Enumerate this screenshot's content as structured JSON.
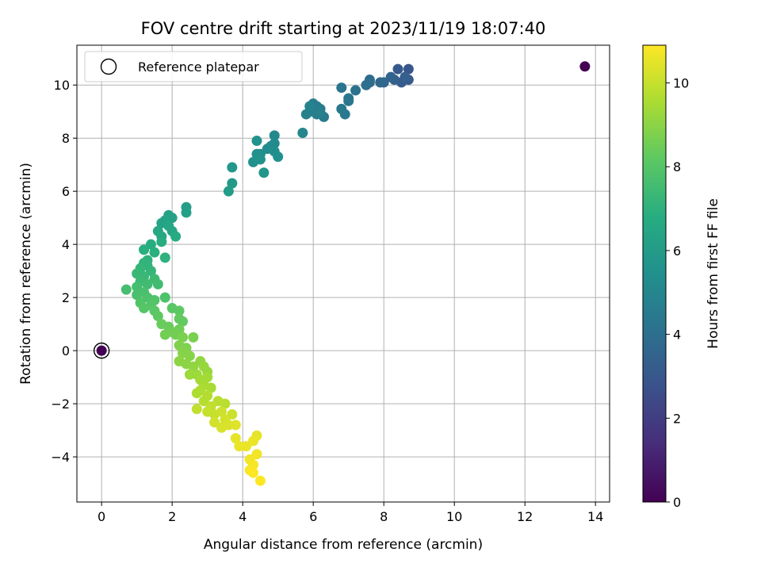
{
  "chart_data": {
    "type": "scatter",
    "title": "FOV centre drift starting at 2023/11/19 18:07:40",
    "xlabel": "Angular distance from reference (arcmin)",
    "ylabel": "Rotation from reference (arcmin)",
    "xlim": [
      -0.7,
      14.4
    ],
    "ylim": [
      -5.7,
      11.5
    ],
    "x_ticks": [
      0,
      2,
      4,
      6,
      8,
      10,
      12,
      14
    ],
    "y_ticks": [
      -4,
      -2,
      0,
      2,
      4,
      6,
      8,
      10
    ],
    "grid": true,
    "legend": {
      "placement": "top-left",
      "entries": [
        "Reference platepar"
      ]
    },
    "reference_point": {
      "x": 0,
      "y": 0,
      "value": 0
    },
    "colorbar": {
      "label": "Hours from first FF file",
      "range": [
        0,
        10.9
      ],
      "ticks": [
        0,
        2,
        4,
        6,
        8,
        10
      ],
      "colormap": "viridis",
      "stops": [
        "#440154",
        "#472c7a",
        "#3b518b",
        "#2c718e",
        "#21908d",
        "#27ad81",
        "#5cc863",
        "#aadc32",
        "#fde725"
      ]
    },
    "points": [
      {
        "x": 13.7,
        "y": 10.7,
        "h": 0.0
      },
      {
        "x": 8.7,
        "y": 10.6,
        "h": 3.0
      },
      {
        "x": 8.4,
        "y": 10.6,
        "h": 3.1
      },
      {
        "x": 8.7,
        "y": 10.2,
        "h": 3.2
      },
      {
        "x": 8.5,
        "y": 10.1,
        "h": 3.2
      },
      {
        "x": 8.6,
        "y": 10.3,
        "h": 3.3
      },
      {
        "x": 8.3,
        "y": 10.2,
        "h": 3.4
      },
      {
        "x": 8.2,
        "y": 10.3,
        "h": 3.5
      },
      {
        "x": 8.0,
        "y": 10.1,
        "h": 3.6
      },
      {
        "x": 7.9,
        "y": 10.1,
        "h": 3.7
      },
      {
        "x": 7.6,
        "y": 10.2,
        "h": 3.8
      },
      {
        "x": 7.6,
        "y": 10.1,
        "h": 3.9
      },
      {
        "x": 7.5,
        "y": 10.0,
        "h": 4.0
      },
      {
        "x": 7.2,
        "y": 9.8,
        "h": 4.1
      },
      {
        "x": 6.8,
        "y": 9.9,
        "h": 4.2
      },
      {
        "x": 7.0,
        "y": 9.5,
        "h": 4.3
      },
      {
        "x": 7.0,
        "y": 9.4,
        "h": 4.3
      },
      {
        "x": 6.8,
        "y": 9.1,
        "h": 4.4
      },
      {
        "x": 6.9,
        "y": 8.9,
        "h": 4.4
      },
      {
        "x": 6.3,
        "y": 8.8,
        "h": 4.5
      },
      {
        "x": 6.2,
        "y": 9.1,
        "h": 4.5
      },
      {
        "x": 6.0,
        "y": 9.3,
        "h": 4.6
      },
      {
        "x": 6.1,
        "y": 9.2,
        "h": 4.6
      },
      {
        "x": 5.9,
        "y": 9.0,
        "h": 4.7
      },
      {
        "x": 6.1,
        "y": 8.9,
        "h": 4.7
      },
      {
        "x": 5.8,
        "y": 8.9,
        "h": 4.8
      },
      {
        "x": 6.2,
        "y": 8.95,
        "h": 4.8
      },
      {
        "x": 5.9,
        "y": 9.2,
        "h": 4.9
      },
      {
        "x": 5.7,
        "y": 8.2,
        "h": 5.0
      },
      {
        "x": 4.9,
        "y": 8.1,
        "h": 5.1
      },
      {
        "x": 4.9,
        "y": 7.8,
        "h": 5.2
      },
      {
        "x": 4.8,
        "y": 7.7,
        "h": 5.2
      },
      {
        "x": 4.7,
        "y": 7.6,
        "h": 5.3
      },
      {
        "x": 4.9,
        "y": 7.5,
        "h": 5.3
      },
      {
        "x": 5.0,
        "y": 7.3,
        "h": 5.4
      },
      {
        "x": 4.5,
        "y": 7.4,
        "h": 5.4
      },
      {
        "x": 4.4,
        "y": 7.4,
        "h": 5.5
      },
      {
        "x": 4.3,
        "y": 7.1,
        "h": 5.5
      },
      {
        "x": 4.5,
        "y": 7.2,
        "h": 5.6
      },
      {
        "x": 4.4,
        "y": 7.9,
        "h": 5.6
      },
      {
        "x": 4.6,
        "y": 6.7,
        "h": 5.7
      },
      {
        "x": 3.7,
        "y": 6.9,
        "h": 5.8
      },
      {
        "x": 3.7,
        "y": 6.3,
        "h": 5.9
      },
      {
        "x": 3.6,
        "y": 6.0,
        "h": 6.0
      },
      {
        "x": 2.4,
        "y": 5.4,
        "h": 6.1
      },
      {
        "x": 2.4,
        "y": 5.2,
        "h": 6.2
      },
      {
        "x": 1.9,
        "y": 5.1,
        "h": 6.3
      },
      {
        "x": 2.0,
        "y": 5.0,
        "h": 6.3
      },
      {
        "x": 1.8,
        "y": 4.9,
        "h": 6.4
      },
      {
        "x": 1.7,
        "y": 4.8,
        "h": 6.4
      },
      {
        "x": 1.9,
        "y": 4.7,
        "h": 6.5
      },
      {
        "x": 2.0,
        "y": 4.5,
        "h": 6.5
      },
      {
        "x": 1.6,
        "y": 4.5,
        "h": 6.6
      },
      {
        "x": 1.7,
        "y": 4.3,
        "h": 6.6
      },
      {
        "x": 2.1,
        "y": 4.3,
        "h": 6.7
      },
      {
        "x": 1.7,
        "y": 4.1,
        "h": 6.8
      },
      {
        "x": 1.4,
        "y": 4.0,
        "h": 6.8
      },
      {
        "x": 1.2,
        "y": 3.8,
        "h": 6.9
      },
      {
        "x": 1.5,
        "y": 3.7,
        "h": 6.9
      },
      {
        "x": 1.8,
        "y": 3.5,
        "h": 7.0
      },
      {
        "x": 1.3,
        "y": 3.4,
        "h": 7.0
      },
      {
        "x": 1.2,
        "y": 3.3,
        "h": 7.1
      },
      {
        "x": 1.3,
        "y": 3.2,
        "h": 7.1
      },
      {
        "x": 1.1,
        "y": 3.1,
        "h": 7.2
      },
      {
        "x": 1.4,
        "y": 3.0,
        "h": 7.2
      },
      {
        "x": 1.0,
        "y": 2.9,
        "h": 7.3
      },
      {
        "x": 1.2,
        "y": 2.8,
        "h": 7.3
      },
      {
        "x": 1.5,
        "y": 2.7,
        "h": 7.4
      },
      {
        "x": 1.1,
        "y": 2.6,
        "h": 7.4
      },
      {
        "x": 1.3,
        "y": 2.5,
        "h": 7.5
      },
      {
        "x": 1.6,
        "y": 2.5,
        "h": 7.5
      },
      {
        "x": 1.0,
        "y": 2.4,
        "h": 7.6
      },
      {
        "x": 0.7,
        "y": 2.3,
        "h": 7.6
      },
      {
        "x": 1.2,
        "y": 2.2,
        "h": 7.7
      },
      {
        "x": 1.0,
        "y": 2.1,
        "h": 7.7
      },
      {
        "x": 1.3,
        "y": 2.0,
        "h": 7.8
      },
      {
        "x": 1.8,
        "y": 2.0,
        "h": 7.8
      },
      {
        "x": 1.5,
        "y": 1.9,
        "h": 7.9
      },
      {
        "x": 1.1,
        "y": 1.8,
        "h": 7.9
      },
      {
        "x": 1.4,
        "y": 1.7,
        "h": 8.0
      },
      {
        "x": 1.2,
        "y": 1.6,
        "h": 8.0
      },
      {
        "x": 1.5,
        "y": 1.5,
        "h": 8.1
      },
      {
        "x": 2.0,
        "y": 1.6,
        "h": 8.1
      },
      {
        "x": 2.2,
        "y": 1.5,
        "h": 8.2
      },
      {
        "x": 1.6,
        "y": 1.3,
        "h": 8.2
      },
      {
        "x": 2.2,
        "y": 1.2,
        "h": 8.3
      },
      {
        "x": 2.3,
        "y": 1.1,
        "h": 8.3
      },
      {
        "x": 1.7,
        "y": 1.0,
        "h": 8.4
      },
      {
        "x": 1.9,
        "y": 0.9,
        "h": 8.4
      },
      {
        "x": 2.2,
        "y": 0.8,
        "h": 8.5
      },
      {
        "x": 2.0,
        "y": 0.7,
        "h": 8.5
      },
      {
        "x": 1.8,
        "y": 0.6,
        "h": 8.6
      },
      {
        "x": 2.1,
        "y": 0.6,
        "h": 8.6
      },
      {
        "x": 2.3,
        "y": 0.5,
        "h": 8.7
      },
      {
        "x": 2.6,
        "y": 0.5,
        "h": 8.7
      },
      {
        "x": 2.2,
        "y": 0.2,
        "h": 8.8
      },
      {
        "x": 2.4,
        "y": 0.1,
        "h": 8.8
      },
      {
        "x": 2.3,
        "y": -0.1,
        "h": 8.9
      },
      {
        "x": 2.5,
        "y": -0.2,
        "h": 8.9
      },
      {
        "x": 2.2,
        "y": -0.4,
        "h": 9.0
      },
      {
        "x": 2.4,
        "y": -0.5,
        "h": 9.0
      },
      {
        "x": 2.8,
        "y": -0.4,
        "h": 9.1
      },
      {
        "x": 2.6,
        "y": -0.6,
        "h": 9.1
      },
      {
        "x": 2.9,
        "y": -0.6,
        "h": 9.2
      },
      {
        "x": 3.0,
        "y": -0.8,
        "h": 9.2
      },
      {
        "x": 2.7,
        "y": -0.9,
        "h": 9.3
      },
      {
        "x": 2.5,
        "y": -0.9,
        "h": 9.3
      },
      {
        "x": 3.0,
        "y": -1.0,
        "h": 9.4
      },
      {
        "x": 2.8,
        "y": -1.1,
        "h": 9.4
      },
      {
        "x": 2.9,
        "y": -1.3,
        "h": 9.5
      },
      {
        "x": 3.1,
        "y": -1.4,
        "h": 9.5
      },
      {
        "x": 2.8,
        "y": -1.5,
        "h": 9.6
      },
      {
        "x": 2.7,
        "y": -1.6,
        "h": 9.6
      },
      {
        "x": 3.0,
        "y": -1.7,
        "h": 9.7
      },
      {
        "x": 2.9,
        "y": -1.9,
        "h": 9.7
      },
      {
        "x": 3.3,
        "y": -1.9,
        "h": 9.8
      },
      {
        "x": 3.5,
        "y": -2.0,
        "h": 9.8
      },
      {
        "x": 3.1,
        "y": -2.1,
        "h": 9.9
      },
      {
        "x": 2.7,
        "y": -2.2,
        "h": 9.9
      },
      {
        "x": 3.0,
        "y": -2.3,
        "h": 10.0
      },
      {
        "x": 3.2,
        "y": -2.4,
        "h": 10.0
      },
      {
        "x": 3.4,
        "y": -2.3,
        "h": 10.1
      },
      {
        "x": 3.7,
        "y": -2.4,
        "h": 10.1
      },
      {
        "x": 3.5,
        "y": -2.6,
        "h": 10.2
      },
      {
        "x": 3.2,
        "y": -2.7,
        "h": 10.2
      },
      {
        "x": 3.6,
        "y": -2.8,
        "h": 10.3
      },
      {
        "x": 3.4,
        "y": -2.9,
        "h": 10.3
      },
      {
        "x": 3.8,
        "y": -2.8,
        "h": 10.4
      },
      {
        "x": 3.8,
        "y": -3.3,
        "h": 10.5
      },
      {
        "x": 4.4,
        "y": -3.2,
        "h": 10.5
      },
      {
        "x": 4.3,
        "y": -3.4,
        "h": 10.6
      },
      {
        "x": 3.9,
        "y": -3.6,
        "h": 10.6
      },
      {
        "x": 4.1,
        "y": -3.6,
        "h": 10.6
      },
      {
        "x": 4.4,
        "y": -3.9,
        "h": 10.7
      },
      {
        "x": 4.2,
        "y": -4.1,
        "h": 10.7
      },
      {
        "x": 4.3,
        "y": -4.3,
        "h": 10.8
      },
      {
        "x": 4.2,
        "y": -4.5,
        "h": 10.8
      },
      {
        "x": 4.3,
        "y": -4.6,
        "h": 10.9
      },
      {
        "x": 4.5,
        "y": -4.9,
        "h": 10.9
      }
    ]
  }
}
